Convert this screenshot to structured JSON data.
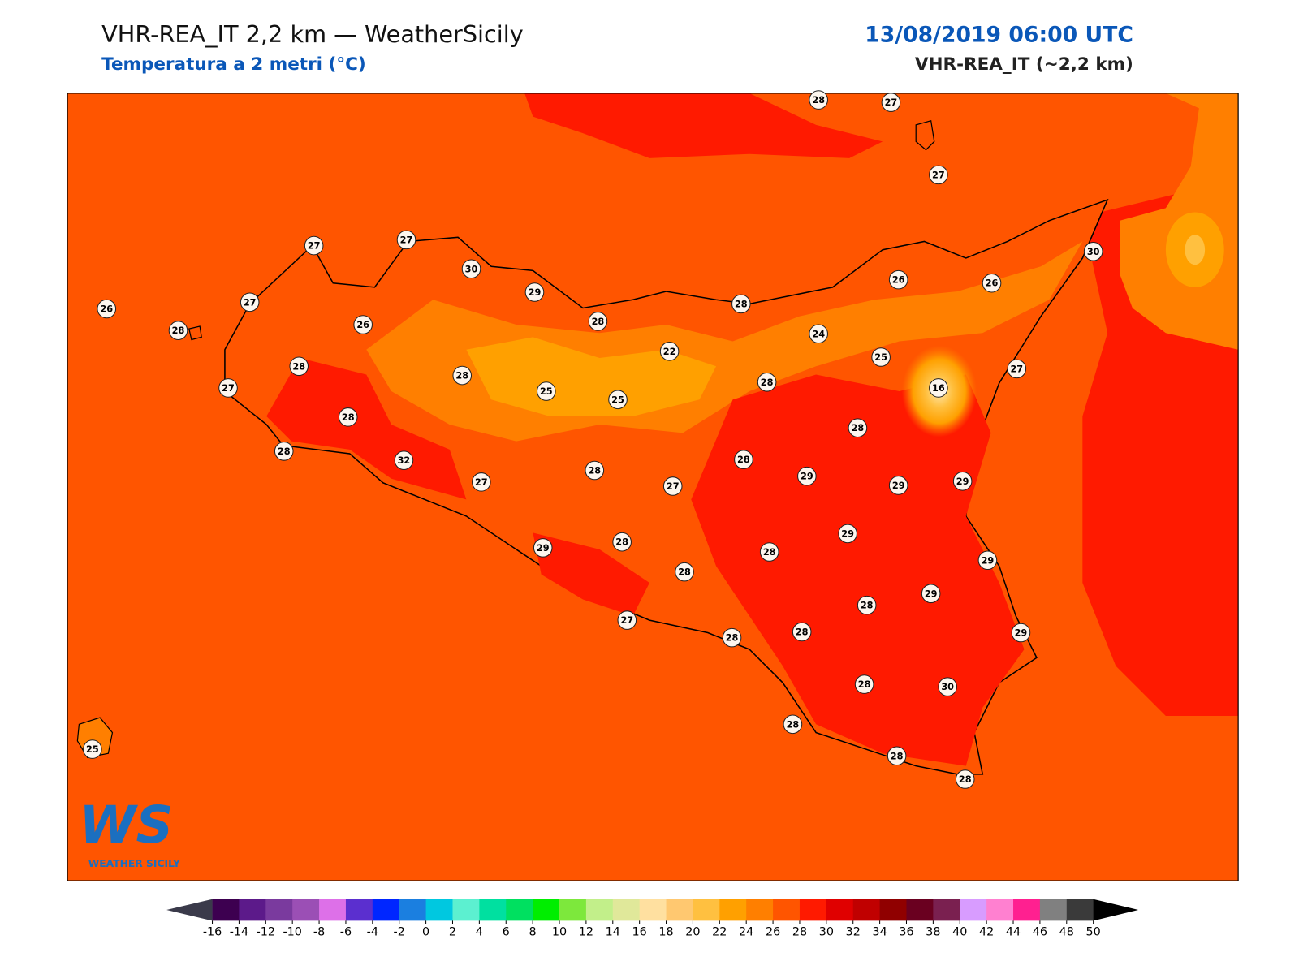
{
  "header": {
    "title": "VHR-REA_IT 2,2 km — WeatherSicily",
    "subtitle": "Temperatura a 2 metri (°C)",
    "datetime": "13/08/2019 06:00 UTC",
    "model": "VHR-REA_IT (~2,2 km)"
  },
  "map": {
    "stations": [
      28,
      27,
      27,
      26,
      28,
      27,
      27,
      27,
      30,
      29,
      28,
      28,
      26,
      28,
      27,
      28,
      28,
      32,
      28,
      25,
      25,
      22,
      24,
      26,
      26,
      30,
      25,
      16,
      27,
      28,
      28,
      28,
      29,
      29,
      29,
      27,
      28,
      27,
      29,
      29,
      28,
      28,
      28,
      29,
      29,
      28,
      27,
      28,
      28,
      29,
      28,
      30,
      28,
      28,
      28,
      25
    ]
  },
  "colorbar": {
    "ticks": [
      -16,
      -14,
      -12,
      -10,
      -8,
      -6,
      -4,
      -2,
      0,
      2,
      4,
      6,
      8,
      10,
      12,
      14,
      16,
      18,
      20,
      22,
      24,
      26,
      28,
      30,
      32,
      34,
      36,
      38,
      40,
      42,
      44,
      46,
      48,
      50
    ],
    "colors": [
      "#3d0050",
      "#5c1a8a",
      "#7a3a9e",
      "#9b4fb5",
      "#dd70e8",
      "#5b2fcf",
      "#0026ff",
      "#1b7fe0",
      "#00c8e0",
      "#5cf0d0",
      "#00e0a0",
      "#00e060",
      "#00ee00",
      "#7de83c",
      "#c2ef8a",
      "#e0e89a",
      "#ffe0a0",
      "#ffc870",
      "#ffc040",
      "#ffa000",
      "#ff7f00",
      "#ff5500",
      "#ff1a00",
      "#e00000",
      "#c00000",
      "#900000",
      "#6a0020",
      "#7a2050",
      "#d89cff",
      "#ff80d0",
      "#ff2090",
      "#808080",
      "#3a3a3a"
    ],
    "under": "#3a3a4a",
    "over": "#000000"
  },
  "logo": {
    "mark": "WS",
    "text": "WEATHER SICILY"
  }
}
